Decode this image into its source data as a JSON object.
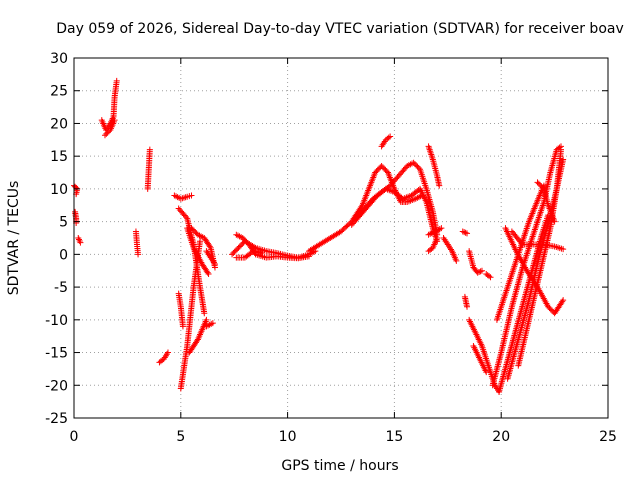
{
  "chart_data": {
    "type": "scatter",
    "title": "Day 059 of 2026, Sidereal Day-to-day VTEC variation (SDTVAR) for receiver boav",
    "xlabel": "GPS time / hours",
    "ylabel": "SDTVAR / TECUs",
    "xlim": [
      0,
      25
    ],
    "ylim": [
      -25,
      30
    ],
    "xticks": [
      0,
      5,
      10,
      15,
      20,
      25
    ],
    "yticks": [
      -25,
      -20,
      -15,
      -10,
      -5,
      0,
      5,
      10,
      15,
      20,
      25,
      30
    ],
    "grid": true,
    "marker": "+",
    "color": "#ff0000",
    "segments": [
      {
        "points": [
          [
            0.0,
            10.5
          ],
          [
            0.15,
            10.0
          ],
          [
            0.1,
            9.2
          ]
        ]
      },
      {
        "points": [
          [
            0.05,
            6.5
          ],
          [
            0.1,
            5.5
          ],
          [
            0.1,
            4.8
          ]
        ]
      },
      {
        "points": [
          [
            0.2,
            2.5
          ],
          [
            0.3,
            1.8
          ]
        ]
      },
      {
        "points": [
          [
            1.3,
            20.5
          ],
          [
            1.5,
            19.0
          ],
          [
            1.7,
            20.0
          ],
          [
            1.85,
            21.0
          ],
          [
            1.9,
            24.0
          ],
          [
            2.0,
            26.5
          ]
        ]
      },
      {
        "points": [
          [
            1.45,
            18.2
          ],
          [
            1.7,
            19.0
          ],
          [
            1.9,
            20.5
          ]
        ]
      },
      {
        "points": [
          [
            2.9,
            3.5
          ],
          [
            2.95,
            1.5
          ],
          [
            3.0,
            0.0
          ]
        ]
      },
      {
        "points": [
          [
            3.45,
            10.0
          ],
          [
            3.5,
            13.0
          ],
          [
            3.55,
            16.0
          ]
        ]
      },
      {
        "points": [
          [
            4.0,
            -16.5
          ],
          [
            4.2,
            -16.0
          ],
          [
            4.4,
            -15.0
          ]
        ]
      },
      {
        "points": [
          [
            4.7,
            9.0
          ],
          [
            5.0,
            8.5
          ],
          [
            5.3,
            8.8
          ],
          [
            5.5,
            9.0
          ]
        ]
      },
      {
        "points": [
          [
            4.9,
            -6.0
          ],
          [
            5.0,
            -8.0
          ],
          [
            5.1,
            -11.0
          ]
        ]
      },
      {
        "points": [
          [
            5.0,
            -20.5
          ],
          [
            5.3,
            -14.0
          ],
          [
            5.6,
            -5.0
          ],
          [
            5.9,
            2.0
          ]
        ]
      },
      {
        "points": [
          [
            4.9,
            7.0
          ],
          [
            5.3,
            5.5
          ],
          [
            5.6,
            1.5
          ],
          [
            5.9,
            -5.0
          ],
          [
            6.1,
            -9.0
          ]
        ]
      },
      {
        "points": [
          [
            5.3,
            4.0
          ],
          [
            5.6,
            1.0
          ],
          [
            6.0,
            -1.5
          ],
          [
            6.3,
            -3.0
          ]
        ]
      },
      {
        "points": [
          [
            5.4,
            -15.0
          ],
          [
            5.8,
            -13.0
          ],
          [
            6.2,
            -10.0
          ]
        ]
      },
      {
        "points": [
          [
            6.2,
            -11.0
          ],
          [
            6.5,
            -10.5
          ]
        ]
      },
      {
        "points": [
          [
            5.5,
            4.0
          ],
          [
            5.8,
            3.0
          ],
          [
            6.1,
            2.5
          ],
          [
            6.4,
            1.0
          ],
          [
            6.6,
            -2.0
          ]
        ]
      },
      {
        "points": [
          [
            6.2,
            0.5
          ],
          [
            6.4,
            -0.5
          ],
          [
            6.6,
            -1.5
          ]
        ]
      },
      {
        "points": [
          [
            7.4,
            0.0
          ],
          [
            7.7,
            1.0
          ],
          [
            8.0,
            2.0
          ],
          [
            8.5,
            1.0
          ],
          [
            9.0,
            0.5
          ],
          [
            9.5,
            0.2
          ],
          [
            10.0,
            -0.2
          ],
          [
            10.5,
            -0.5
          ],
          [
            11.0,
            0.0
          ],
          [
            11.3,
            0.5
          ]
        ]
      },
      {
        "points": [
          [
            7.6,
            3.0
          ],
          [
            7.9,
            2.5
          ],
          [
            8.2,
            1.5
          ],
          [
            8.5,
            0.0
          ],
          [
            9.0,
            -0.5
          ],
          [
            9.5,
            -0.3
          ],
          [
            10.0,
            -0.5
          ],
          [
            10.5,
            -0.6
          ],
          [
            11.0,
            -0.3
          ]
        ]
      },
      {
        "points": [
          [
            7.6,
            -0.5
          ],
          [
            8.0,
            -0.5
          ],
          [
            8.4,
            0.5
          ],
          [
            8.8,
            0.2
          ]
        ]
      },
      {
        "points": [
          [
            11.0,
            0.5
          ],
          [
            11.5,
            1.5
          ],
          [
            12.0,
            2.5
          ],
          [
            12.5,
            3.5
          ],
          [
            13.0,
            5.0
          ],
          [
            13.5,
            7.5
          ],
          [
            13.8,
            10.0
          ],
          [
            14.1,
            12.5
          ],
          [
            14.4,
            13.5
          ],
          [
            14.7,
            12.5
          ],
          [
            15.0,
            10.0
          ],
          [
            15.3,
            8.0
          ],
          [
            15.6,
            8.0
          ],
          [
            16.0,
            8.5
          ],
          [
            16.3,
            9.0
          ]
        ]
      },
      {
        "points": [
          [
            13.0,
            4.5
          ],
          [
            13.4,
            6.0
          ],
          [
            13.8,
            7.5
          ],
          [
            14.2,
            9.0
          ],
          [
            14.6,
            10.0
          ],
          [
            15.0,
            9.5
          ],
          [
            15.4,
            8.5
          ],
          [
            15.8,
            9.0
          ],
          [
            16.2,
            10.0
          ],
          [
            16.5,
            8.0
          ],
          [
            16.8,
            4.0
          ],
          [
            17.0,
            2.0
          ]
        ]
      },
      {
        "points": [
          [
            13.2,
            5.5
          ],
          [
            13.6,
            7.0
          ],
          [
            14.0,
            8.5
          ],
          [
            14.4,
            9.5
          ],
          [
            14.8,
            10.5
          ],
          [
            15.2,
            12.0
          ],
          [
            15.6,
            13.5
          ],
          [
            15.9,
            14.0
          ],
          [
            16.2,
            13.0
          ],
          [
            16.5,
            10.0
          ],
          [
            16.8,
            6.5
          ],
          [
            17.0,
            3.0
          ]
        ]
      },
      {
        "points": [
          [
            14.4,
            16.5
          ],
          [
            14.6,
            17.5
          ],
          [
            14.8,
            18.0
          ]
        ]
      },
      {
        "points": [
          [
            16.6,
            16.5
          ],
          [
            16.8,
            14.5
          ],
          [
            17.0,
            12.0
          ],
          [
            17.1,
            10.5
          ]
        ]
      },
      {
        "points": [
          [
            16.6,
            3.0
          ],
          [
            16.9,
            3.5
          ],
          [
            17.2,
            4.0
          ]
        ]
      },
      {
        "points": [
          [
            17.0,
            2.5
          ],
          [
            16.8,
            1.0
          ],
          [
            16.6,
            0.5
          ]
        ]
      },
      {
        "points": [
          [
            17.3,
            2.5
          ],
          [
            17.5,
            1.5
          ],
          [
            17.7,
            0.5
          ],
          [
            17.9,
            -1.0
          ]
        ]
      },
      {
        "points": [
          [
            18.2,
            3.5
          ],
          [
            18.4,
            3.2
          ]
        ]
      },
      {
        "points": [
          [
            18.5,
            0.5
          ],
          [
            18.7,
            -2.0
          ],
          [
            18.9,
            -2.8
          ],
          [
            19.1,
            -2.5
          ]
        ]
      },
      {
        "points": [
          [
            18.3,
            -6.5
          ],
          [
            18.4,
            -8.0
          ]
        ]
      },
      {
        "points": [
          [
            18.5,
            -10.0
          ],
          [
            18.8,
            -12.0
          ],
          [
            19.1,
            -14.0
          ],
          [
            19.4,
            -17.0
          ],
          [
            19.7,
            -20.0
          ],
          [
            19.9,
            -21.0
          ]
        ]
      },
      {
        "points": [
          [
            18.7,
            -14.0
          ],
          [
            19.0,
            -16.0
          ],
          [
            19.3,
            -18.0
          ]
        ]
      },
      {
        "points": [
          [
            19.3,
            -3.0
          ],
          [
            19.5,
            -3.5
          ]
        ]
      },
      {
        "points": [
          [
            19.8,
            -10.0
          ],
          [
            20.3,
            -5.0
          ],
          [
            20.8,
            0.0
          ],
          [
            21.3,
            5.0
          ],
          [
            21.8,
            9.0
          ],
          [
            22.0,
            10.5
          ]
        ]
      },
      {
        "points": [
          [
            19.9,
            -21.0
          ],
          [
            20.4,
            -15.0
          ],
          [
            20.9,
            -9.0
          ],
          [
            21.4,
            -3.0
          ],
          [
            21.9,
            3.0
          ],
          [
            22.2,
            6.0
          ]
        ]
      },
      {
        "points": [
          [
            20.3,
            -19.0
          ],
          [
            20.8,
            -13.0
          ],
          [
            21.3,
            -7.0
          ],
          [
            21.8,
            0.0
          ],
          [
            22.3,
            6.0
          ],
          [
            22.6,
            10.0
          ],
          [
            22.9,
            14.5
          ]
        ]
      },
      {
        "points": [
          [
            20.8,
            -17.0
          ],
          [
            21.3,
            -10.0
          ],
          [
            21.8,
            -3.0
          ],
          [
            22.3,
            4.0
          ],
          [
            22.6,
            10.0
          ],
          [
            22.8,
            16.0
          ]
        ]
      },
      {
        "points": [
          [
            19.6,
            -20.0
          ],
          [
            20.0,
            -15.0
          ],
          [
            20.5,
            -8.0
          ],
          [
            21.0,
            -2.0
          ],
          [
            21.5,
            3.0
          ],
          [
            22.0,
            8.0
          ],
          [
            22.3,
            12.5
          ],
          [
            22.6,
            16.0
          ],
          [
            22.8,
            16.5
          ]
        ]
      },
      {
        "points": [
          [
            20.2,
            4.0
          ],
          [
            20.7,
            0.5
          ],
          [
            21.2,
            -2.5
          ],
          [
            21.7,
            -5.0
          ],
          [
            22.2,
            -8.0
          ],
          [
            22.5,
            -9.0
          ],
          [
            22.9,
            -7.0
          ]
        ]
      },
      {
        "points": [
          [
            20.5,
            3.5
          ],
          [
            21.0,
            1.5
          ],
          [
            21.5,
            1.5
          ],
          [
            22.0,
            1.5
          ],
          [
            22.5,
            1.2
          ],
          [
            22.9,
            0.8
          ]
        ]
      },
      {
        "points": [
          [
            21.7,
            11.0
          ],
          [
            22.0,
            10.0
          ],
          [
            22.2,
            7.5
          ],
          [
            22.5,
            5.0
          ]
        ]
      }
    ]
  }
}
